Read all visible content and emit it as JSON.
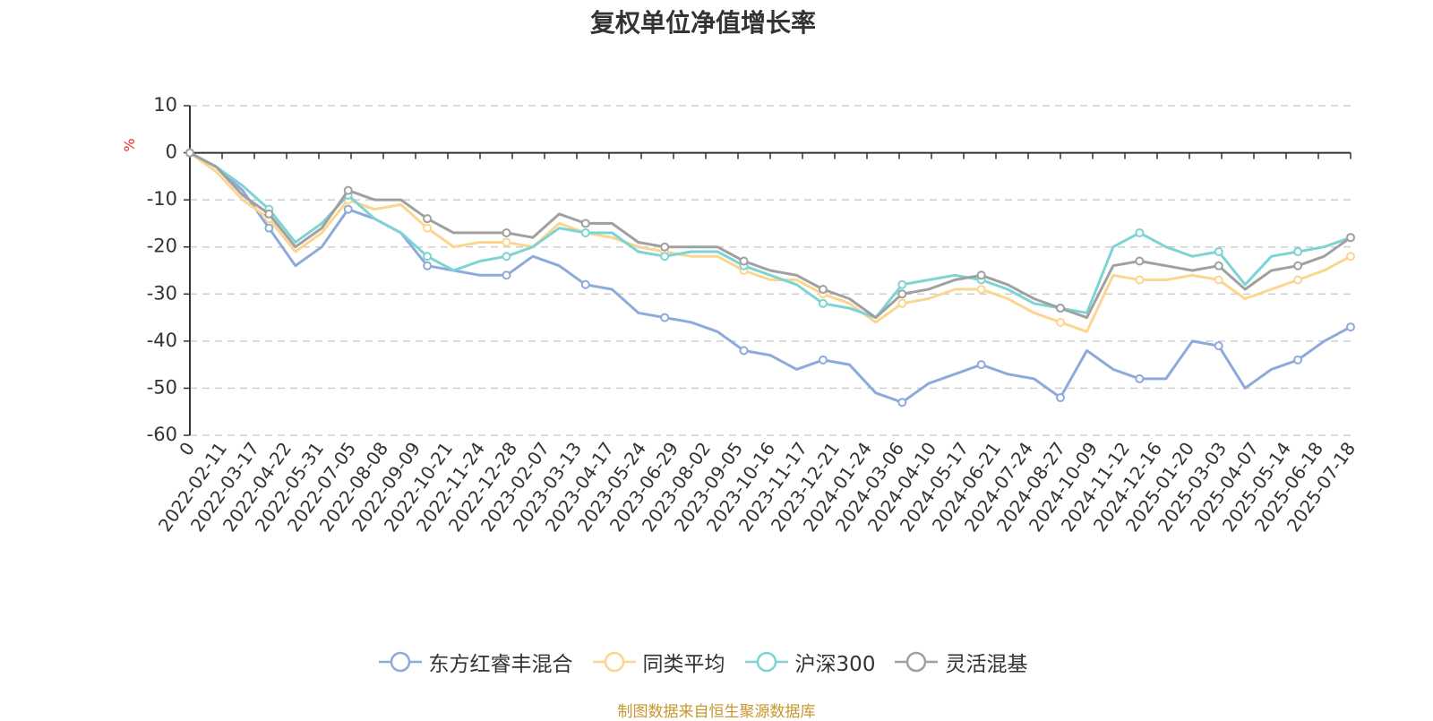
{
  "chart_data": {
    "type": "line",
    "title": "复权单位净值增长率",
    "ylabel": "%",
    "ylim": [
      -60,
      10
    ],
    "yticks": [
      10,
      0,
      -10,
      -20,
      -30,
      -40,
      -50,
      -60
    ],
    "grid": true,
    "legend_position": "bottom",
    "x_tick_labels": [
      "0",
      "2022-02-11",
      "2022-03-17",
      "2022-04-22",
      "2022-05-31",
      "2022-07-05",
      "2022-08-08",
      "2022-09-09",
      "2022-10-21",
      "2022-11-24",
      "2022-12-28",
      "2023-02-07",
      "2023-03-13",
      "2023-04-17",
      "2023-05-24",
      "2023-06-29",
      "2023-08-02",
      "2023-09-05",
      "2023-10-16",
      "2023-11-17",
      "2023-12-21",
      "2024-01-24",
      "2024-03-06",
      "2024-04-10",
      "2024-05-17",
      "2024-06-21",
      "2024-07-24",
      "2024-08-27",
      "2024-10-09",
      "2024-11-12",
      "2024-12-16",
      "2025-01-20",
      "2025-03-03",
      "2025-04-07",
      "2025-05-14",
      "2025-06-18",
      "2025-07-18"
    ],
    "series": [
      {
        "name": "东方红睿丰混合",
        "color": "#8eaadb",
        "values": [
          0,
          -3,
          -8,
          -16,
          -24,
          -20,
          -12,
          -14,
          -17,
          -24,
          -25,
          -26,
          -26,
          -22,
          -24,
          -28,
          -29,
          -34,
          -35,
          -36,
          -38,
          -42,
          -43,
          -46,
          -44,
          -45,
          -51,
          -53,
          -49,
          -47,
          -45,
          -47,
          -48,
          -52,
          -42,
          -46,
          -48,
          -48,
          -40,
          -41,
          -50,
          -46,
          -44,
          -40,
          -37
        ]
      },
      {
        "name": "同类平均",
        "color": "#fcd58e",
        "values": [
          0,
          -4,
          -10,
          -14,
          -21,
          -17,
          -10,
          -12,
          -11,
          -16,
          -20,
          -19,
          -19,
          -20,
          -15,
          -17,
          -18,
          -20,
          -21,
          -22,
          -22,
          -25,
          -27,
          -27,
          -30,
          -32,
          -36,
          -32,
          -31,
          -29,
          -29,
          -31,
          -34,
          -36,
          -38,
          -26,
          -27,
          -27,
          -26,
          -27,
          -31,
          -29,
          -27,
          -25,
          -22
        ]
      },
      {
        "name": "沪深300",
        "color": "#7ed3d4",
        "values": [
          0,
          -3,
          -7,
          -12,
          -19,
          -15,
          -9,
          -14,
          -17,
          -22,
          -25,
          -23,
          -22,
          -20,
          -16,
          -17,
          -17,
          -21,
          -22,
          -21,
          -21,
          -24,
          -26,
          -28,
          -32,
          -33,
          -35,
          -28,
          -27,
          -26,
          -27,
          -29,
          -32,
          -33,
          -34,
          -20,
          -17,
          -20,
          -22,
          -21,
          -28,
          -22,
          -21,
          -20,
          -18
        ]
      },
      {
        "name": "灵活混基",
        "color": "#a0a0a0",
        "values": [
          0,
          -3,
          -9,
          -13,
          -20,
          -16,
          -8,
          -10,
          -10,
          -14,
          -17,
          -17,
          -17,
          -18,
          -13,
          -15,
          -15,
          -19,
          -20,
          -20,
          -20,
          -23,
          -25,
          -26,
          -29,
          -31,
          -35,
          -30,
          -29,
          -27,
          -26,
          -28,
          -31,
          -33,
          -35,
          -24,
          -23,
          -24,
          -25,
          -24,
          -29,
          -25,
          -24,
          -22,
          -18
        ]
      }
    ]
  },
  "source_text": "制图数据来自恒生聚源数据库"
}
